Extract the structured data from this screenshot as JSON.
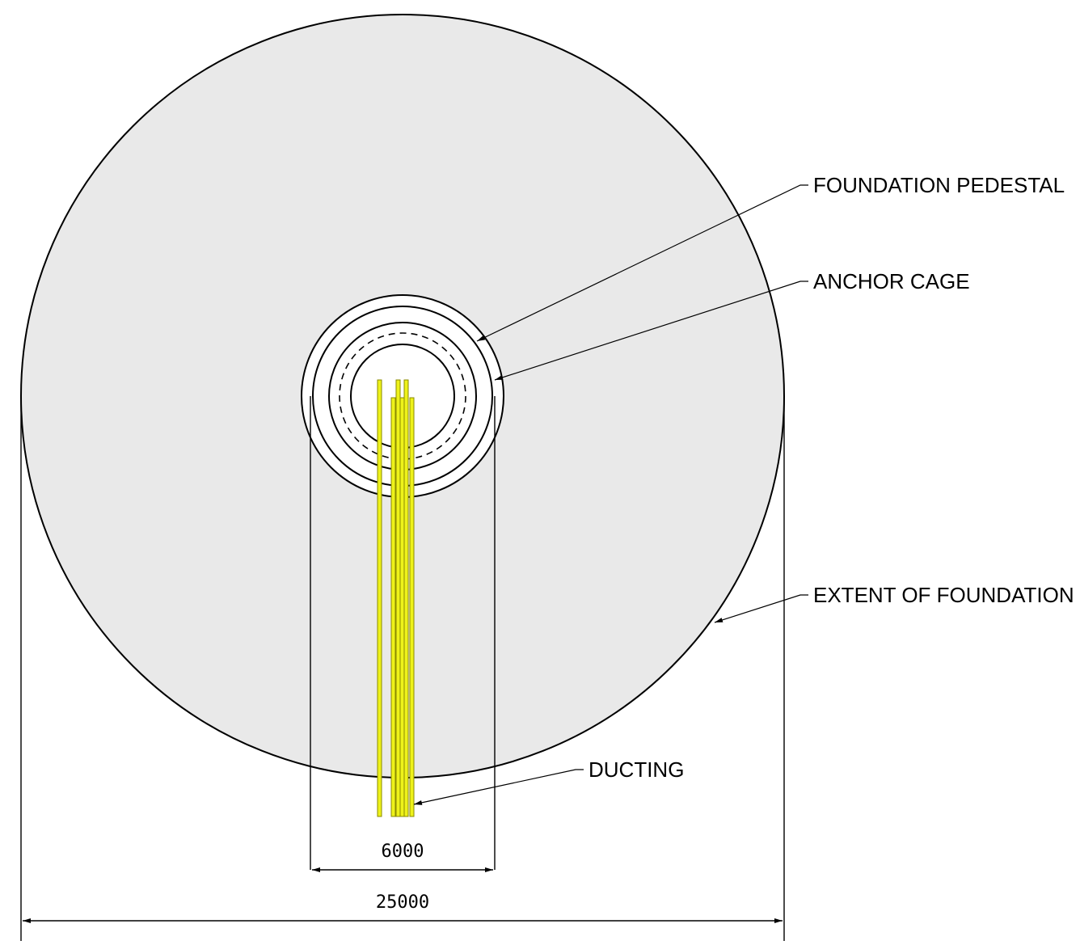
{
  "labels": {
    "foundation_pedestal": "FOUNDATION PEDESTAL",
    "anchor_cage": "ANCHOR CAGE",
    "extent_of_foundation": "EXTENT OF FOUNDATION",
    "ducting": "DUCTING"
  },
  "dimensions": {
    "pedestal_width": "6000",
    "foundation_width": "25000"
  },
  "colors": {
    "foundation_fill": "#e9e9e9",
    "ducting": "#eef21a",
    "line": "#000000"
  }
}
